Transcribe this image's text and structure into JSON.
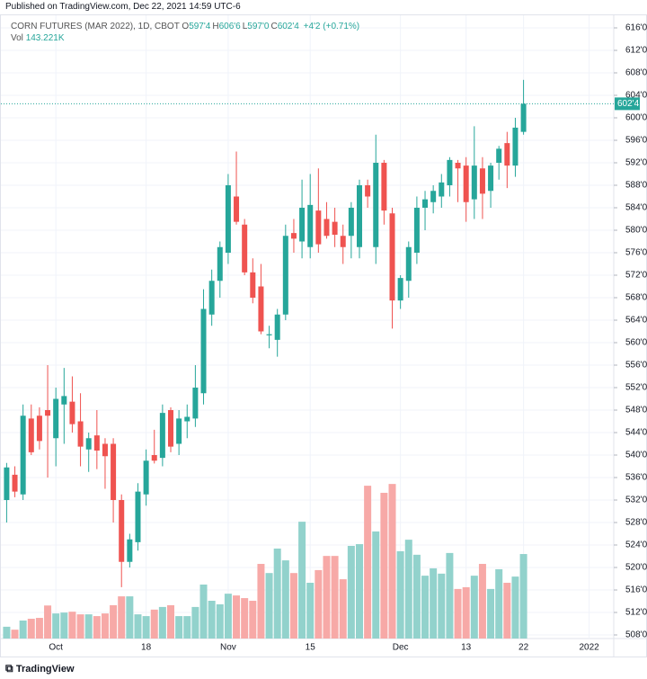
{
  "header": {
    "published": "Published on TradingView.com, Dec 22, 2021 14:59 UTC-6",
    "footer": "TradingView"
  },
  "chart_data": {
    "type": "candlestick",
    "title": "CORN FUTURES (MAR 2022), 1D, CBOT",
    "ohlc_legend": [
      {
        "label": "O",
        "value": "597'4"
      },
      {
        "label": "H",
        "value": "606'6"
      },
      {
        "label": "L",
        "value": "597'0"
      },
      {
        "label": "C",
        "value": "602'4"
      }
    ],
    "change": "+4'2 (+0.71%)",
    "volume_legend": {
      "label": "Vol",
      "value": "143.221K"
    },
    "x": [
      "2021-09-23",
      "2021-09-24",
      "2021-09-27",
      "2021-09-28",
      "2021-09-29",
      "2021-09-30",
      "2021-10-01",
      "2021-10-04",
      "2021-10-05",
      "2021-10-06",
      "2021-10-07",
      "2021-10-08",
      "2021-10-11",
      "2021-10-12",
      "2021-10-13",
      "2021-10-14",
      "2021-10-15",
      "2021-10-18",
      "2021-10-19",
      "2021-10-20",
      "2021-10-21",
      "2021-10-22",
      "2021-10-25",
      "2021-10-26",
      "2021-10-27",
      "2021-10-28",
      "2021-10-29",
      "2021-11-01",
      "2021-11-02",
      "2021-11-03",
      "2021-11-04",
      "2021-11-05",
      "2021-11-08",
      "2021-11-09",
      "2021-11-10",
      "2021-11-11",
      "2021-11-12",
      "2021-11-15",
      "2021-11-16",
      "2021-11-17",
      "2021-11-18",
      "2021-11-19",
      "2021-11-22",
      "2021-11-23",
      "2021-11-24",
      "2021-11-26",
      "2021-11-29",
      "2021-11-30",
      "2021-12-01",
      "2021-12-02",
      "2021-12-03",
      "2021-12-06",
      "2021-12-07",
      "2021-12-08",
      "2021-12-09",
      "2021-12-10",
      "2021-12-13",
      "2021-12-14",
      "2021-12-15",
      "2021-12-16",
      "2021-12-17",
      "2021-12-20",
      "2021-12-21",
      "2021-12-22"
    ],
    "open": [
      532,
      536.5,
      533,
      546.5,
      547,
      548,
      543,
      549,
      549.5,
      546,
      541,
      543.5,
      542,
      542,
      532,
      521,
      524.5,
      533,
      540,
      539.5,
      548,
      542,
      546,
      546.5,
      551,
      565,
      571,
      576,
      586,
      581,
      572.5,
      570,
      561.3,
      560.5,
      565,
      579.5,
      578,
      577,
      583.5,
      582,
      581.5,
      579,
      579,
      577,
      588,
      577,
      592,
      583,
      567.5,
      571,
      576,
      584,
      585,
      586,
      588,
      592,
      591.5,
      585.5,
      591,
      587,
      592,
      595.5,
      591.5,
      597.5
    ],
    "high": [
      538.6,
      538,
      549,
      549,
      548.5,
      556,
      552,
      555.5,
      554,
      551,
      544,
      548,
      543,
      543,
      533,
      526,
      535,
      541,
      544.5,
      549,
      548.5,
      548,
      549,
      556,
      569.5,
      573,
      578,
      590,
      594,
      582,
      575,
      574,
      563,
      566,
      581,
      582,
      589,
      590,
      591,
      585,
      584,
      581,
      585,
      589,
      589,
      597,
      592.5,
      584,
      572,
      578,
      586,
      587,
      588,
      590,
      593,
      592.5,
      593,
      598.5,
      593,
      592,
      595,
      597.5,
      600,
      606.75
    ],
    "low": [
      528,
      532.5,
      532,
      540,
      541,
      536,
      538,
      542,
      544,
      538,
      537,
      537.5,
      534,
      528,
      516.5,
      520,
      523,
      531,
      538.5,
      538,
      540.5,
      540,
      543,
      545,
      549,
      563,
      568,
      574,
      581,
      572,
      567,
      561.5,
      559,
      557.5,
      564,
      576,
      575,
      575,
      576,
      578.5,
      577,
      574,
      575,
      575,
      584,
      574,
      581,
      562.5,
      566,
      568,
      574,
      580,
      583,
      584,
      586,
      585,
      581.5,
      582,
      582,
      584,
      589,
      587.5,
      589.5,
      597
    ],
    "close": [
      537.8,
      533.5,
      547,
      540.5,
      542.5,
      547,
      550,
      550.5,
      545.5,
      541.5,
      543,
      540.8,
      539.8,
      532,
      521,
      525,
      533.5,
      539,
      539,
      547.5,
      541.5,
      546.5,
      546.8,
      552,
      566,
      571,
      577,
      588,
      581.5,
      572.5,
      568,
      562,
      561.5,
      565,
      579,
      578.5,
      584,
      584.5,
      577.5,
      579,
      579.2,
      577,
      584,
      588,
      586,
      592,
      583.5,
      567.5,
      571.5,
      577,
      584,
      585.5,
      587,
      588.5,
      592.5,
      591,
      585,
      591.5,
      586.5,
      591.5,
      594.5,
      591.5,
      598.25,
      602.5
    ],
    "volume": [
      20000,
      15000,
      30500,
      33500,
      35000,
      56000,
      42500,
      44000,
      45500,
      41000,
      41000,
      38000,
      42500,
      56500,
      71500,
      71500,
      41000,
      38000,
      49000,
      53500,
      56500,
      38000,
      38000,
      53500,
      91500,
      64000,
      58000,
      76000,
      73000,
      68500,
      64000,
      126500,
      111000,
      152500,
      132500,
      111000,
      198000,
      94500,
      116000,
      140000,
      140000,
      100500,
      157000,
      160000,
      259000,
      181500,
      247000,
      262000,
      148000,
      167500,
      142000,
      106500,
      119000,
      110000,
      145000,
      84000,
      87000,
      106500,
      126500,
      84000,
      117500,
      94500,
      105000,
      143221
    ],
    "up_color": "#26a69a",
    "down_color": "#ef5350",
    "up_volume_color": "#92d2cc",
    "down_volume_color": "#f7a9a7",
    "ylim": [
      507.36,
      617.44
    ],
    "yticks": [
      {
        "value": 508,
        "label": "508'0"
      },
      {
        "value": 512,
        "label": "512'0"
      },
      {
        "value": 516,
        "label": "516'0"
      },
      {
        "value": 520,
        "label": "520'0"
      },
      {
        "value": 524,
        "label": "524'0"
      },
      {
        "value": 528,
        "label": "528'0"
      },
      {
        "value": 532,
        "label": "532'0"
      },
      {
        "value": 536,
        "label": "536'0"
      },
      {
        "value": 540,
        "label": "540'0"
      },
      {
        "value": 544,
        "label": "544'0"
      },
      {
        "value": 548,
        "label": "548'0"
      },
      {
        "value": 552,
        "label": "552'0"
      },
      {
        "value": 556,
        "label": "556'0"
      },
      {
        "value": 560,
        "label": "560'0"
      },
      {
        "value": 564,
        "label": "564'0"
      },
      {
        "value": 568,
        "label": "568'0"
      },
      {
        "value": 572,
        "label": "572'0"
      },
      {
        "value": 576,
        "label": "576'0"
      },
      {
        "value": 580,
        "label": "580'0"
      },
      {
        "value": 584,
        "label": "584'0"
      },
      {
        "value": 588,
        "label": "588'0"
      },
      {
        "value": 592,
        "label": "592'0"
      },
      {
        "value": 596,
        "label": "596'0"
      },
      {
        "value": 600,
        "label": "600'0"
      },
      {
        "value": 604,
        "label": "604'0"
      },
      {
        "value": 608,
        "label": "608'0"
      },
      {
        "value": 612,
        "label": "612'0"
      },
      {
        "value": 616,
        "label": "616'0"
      }
    ],
    "xticks": [
      {
        "value": "2021-10-01",
        "label": "Oct"
      },
      {
        "value": "2021-10-18",
        "label": "18"
      },
      {
        "value": "2021-11-01",
        "label": "Nov"
      },
      {
        "value": "2021-11-15",
        "label": "15"
      },
      {
        "value": "2021-12-01",
        "label": "Dec"
      },
      {
        "value": "2021-12-13",
        "label": "13"
      },
      {
        "value": "2021-12-22",
        "label": "22"
      },
      {
        "value": "2022-01-03",
        "label": "2022"
      }
    ],
    "last_price": {
      "value": 602.5,
      "label": "602'4"
    },
    "grid": true
  }
}
